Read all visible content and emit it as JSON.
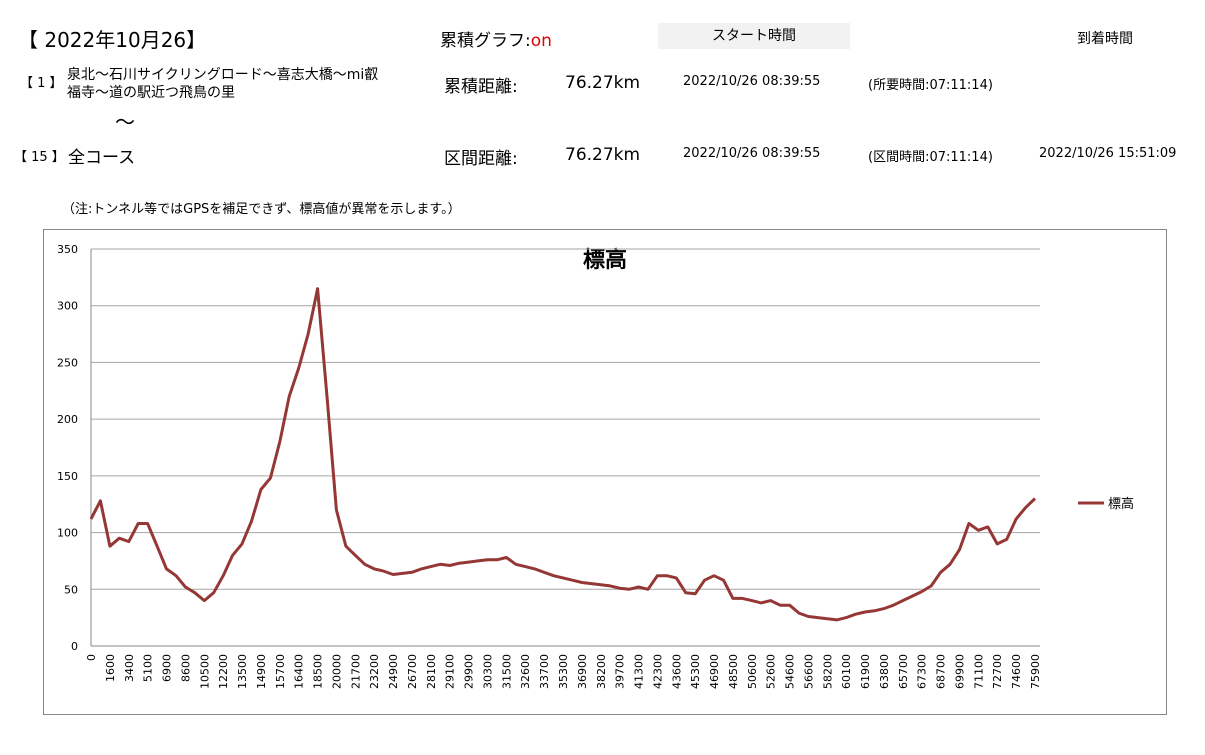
{
  "header": {
    "date": "【 2022年10月26】",
    "cumulative_graph_label": "累積グラフ:",
    "cumulative_graph_value": "on",
    "start_time_header": "スタート時間",
    "arrival_time_header": "到着時間",
    "route_from_number": "【 1 】",
    "route_from_name_line1": "泉北～石川サイクリングロード～喜志大橋～mi叡",
    "route_from_name_line2": "福寺～道の駅近つ飛鳥の里",
    "cumulative_distance_label": "累積距離:",
    "cumulative_distance": "76.27km",
    "cumulative_start": "2022/10/26 08:39:55",
    "cumulative_duration": "(所要時間:07:11:14)",
    "tilde": "～",
    "route_to_number": "【 15 】",
    "route_to_name": "全コース",
    "section_distance_label": "区間距離:",
    "section_distance": "76.27km",
    "section_start": "2022/10/26 08:39:55",
    "section_duration": "(区間時間:07:11:14)",
    "section_arrival": "2022/10/26 15:51:09",
    "note": "（注:トンネル等ではGPSを補足できず、標高値が異常を示します。）"
  },
  "chart_data": {
    "type": "line",
    "title": "標高",
    "categories": [
      "0",
      null,
      "1600",
      null,
      "3400",
      null,
      "5100",
      null,
      "6900",
      null,
      "8600",
      null,
      "10500",
      null,
      "12200",
      null,
      "13500",
      null,
      "14900",
      null,
      "15700",
      null,
      "16400",
      null,
      "18500",
      null,
      "20000",
      null,
      "21700",
      null,
      "23200",
      null,
      "24900",
      null,
      "26700",
      null,
      "28100",
      null,
      "29100",
      null,
      "29900",
      null,
      "30300",
      null,
      "31500",
      null,
      "32600",
      null,
      "33700",
      null,
      "35300",
      null,
      "36900",
      null,
      "38200",
      null,
      "39700",
      null,
      "41300",
      null,
      "42300",
      null,
      "43600",
      null,
      "45300",
      null,
      "46900",
      null,
      "48500",
      null,
      "50600",
      null,
      "52600",
      null,
      "54600",
      null,
      "56600",
      null,
      "58200",
      null,
      "60100",
      null,
      "61900",
      null,
      "63800",
      null,
      "65700",
      null,
      "67300",
      null,
      "68700",
      null,
      "69900",
      null,
      "71100",
      null,
      "72700",
      null,
      "74600",
      null,
      "75900"
    ],
    "series": [
      {
        "name": "標高",
        "color": "#953735",
        "values": [
          112,
          128,
          88,
          95,
          92,
          108,
          108,
          88,
          68,
          62,
          52,
          47,
          40,
          47,
          62,
          80,
          90,
          110,
          138,
          148,
          180,
          220,
          245,
          275,
          315,
          220,
          120,
          88,
          80,
          72,
          68,
          66,
          63,
          64,
          65,
          68,
          70,
          72,
          71,
          73,
          74,
          75,
          76,
          76,
          78,
          72,
          70,
          68,
          65,
          62,
          60,
          58,
          56,
          55,
          54,
          53,
          51,
          50,
          52,
          50,
          62,
          62,
          60,
          47,
          46,
          58,
          62,
          58,
          42,
          42,
          40,
          38,
          40,
          36,
          36,
          29,
          26,
          25,
          24,
          23,
          25,
          28,
          30,
          31,
          33,
          36,
          40,
          44,
          48,
          53,
          65,
          72,
          85,
          108,
          102,
          105,
          90,
          94,
          112,
          122,
          130
        ]
      }
    ],
    "ylim": [
      0,
      350
    ],
    "yticks": [
      0,
      50,
      100,
      150,
      200,
      250,
      300,
      350
    ],
    "grid": true,
    "legend": "right"
  }
}
